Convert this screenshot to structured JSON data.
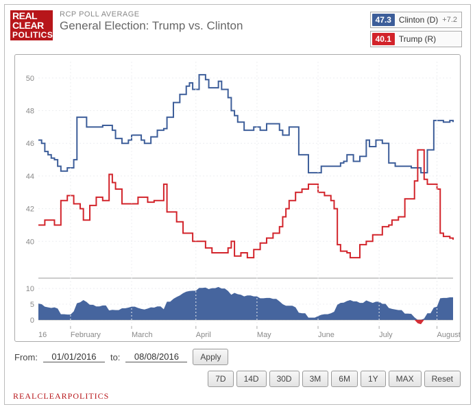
{
  "header": {
    "logo_lines": [
      "REAL",
      "CLEAR",
      "POLITICS"
    ],
    "supertitle": "RCP POLL AVERAGE",
    "title": "General Election: Trump vs. Clinton"
  },
  "legend": [
    {
      "value": "47.3",
      "name": "Clinton (D)",
      "lead": "+7.2",
      "color": "#3c5d99"
    },
    {
      "value": "40.1",
      "name": "Trump (R)",
      "lead": "",
      "color": "#d2232a"
    }
  ],
  "main_chart": {
    "type": "line",
    "background_color": "#ffffff",
    "grid_color": "#eceef0",
    "grid_dash": "2,3",
    "axis_color": "#dddddd",
    "label_color": "#888888",
    "label_fontsize": 11,
    "ylim": [
      38,
      51
    ],
    "yticks": [
      40,
      42,
      44,
      46,
      48,
      50
    ],
    "line_width": 2,
    "series": [
      {
        "name": "Clinton (D)",
        "color": "#3c5d99",
        "y": [
          46.2,
          46.0,
          45.5,
          45.3,
          45.1,
          45.0,
          44.6,
          44.3,
          44.3,
          44.5,
          44.5,
          45.0,
          47.6,
          47.6,
          47.6,
          47.0,
          47.0,
          47.0,
          47.0,
          47.0,
          47.1,
          47.1,
          47.1,
          46.8,
          46.3,
          46.3,
          46.0,
          46.0,
          46.2,
          46.5,
          46.5,
          46.5,
          46.2,
          46.0,
          46.0,
          46.4,
          46.4,
          46.8,
          46.8,
          46.9,
          47.6,
          47.6,
          48.5,
          48.5,
          49.0,
          49.0,
          49.5,
          49.7,
          49.3,
          49.3,
          50.2,
          50.2,
          49.9,
          49.4,
          49.4,
          49.4,
          49.8,
          49.3,
          49.3,
          48.8,
          48.0,
          47.7,
          47.3,
          47.3,
          46.8,
          46.8,
          46.8,
          47.0,
          47.0,
          46.8,
          46.8,
          47.2,
          47.2,
          47.2,
          47.2,
          46.8,
          46.5,
          46.5,
          47.0,
          47.0,
          47.0,
          45.3,
          45.3,
          45.3,
          44.2,
          44.2,
          44.2,
          44.2,
          44.6,
          44.6,
          44.6,
          44.6,
          44.6,
          44.6,
          44.8,
          44.9,
          45.3,
          45.3,
          44.9,
          44.9,
          45.2,
          45.2,
          46.2,
          45.8,
          45.8,
          46.2,
          46.2,
          46.0,
          46.0,
          44.8,
          44.8,
          44.6,
          44.6,
          44.6,
          44.6,
          44.6,
          44.5,
          44.5,
          44.5,
          44.2,
          44.2,
          45.6,
          45.6,
          47.4,
          47.4,
          47.4,
          47.3,
          47.3,
          47.4,
          47.3
        ]
      },
      {
        "name": "Trump (R)",
        "color": "#d2232a",
        "y": [
          41.0,
          41.0,
          41.3,
          41.3,
          41.3,
          41.0,
          41.0,
          42.5,
          42.5,
          42.8,
          42.8,
          42.3,
          42.3,
          42.0,
          41.3,
          41.3,
          42.2,
          42.2,
          42.7,
          42.7,
          42.5,
          42.5,
          44.1,
          43.6,
          43.2,
          43.2,
          42.3,
          42.3,
          42.3,
          42.3,
          42.3,
          42.7,
          42.7,
          42.7,
          42.4,
          42.4,
          42.5,
          42.5,
          42.5,
          43.5,
          41.8,
          41.8,
          41.8,
          41.2,
          41.2,
          40.5,
          40.5,
          40.5,
          40.0,
          40.0,
          40.0,
          40.0,
          39.6,
          39.6,
          39.3,
          39.3,
          39.3,
          39.3,
          39.3,
          39.6,
          40.0,
          39.1,
          39.1,
          39.3,
          39.3,
          39.0,
          39.0,
          39.5,
          39.5,
          39.9,
          39.9,
          40.2,
          40.2,
          40.5,
          40.5,
          40.9,
          41.5,
          42.0,
          42.5,
          42.5,
          43.0,
          43.0,
          43.2,
          43.2,
          43.5,
          43.5,
          43.5,
          43.0,
          43.0,
          42.8,
          42.8,
          42.5,
          42.0,
          39.8,
          39.4,
          39.4,
          39.3,
          39.0,
          39.0,
          39.0,
          39.8,
          39.8,
          40.0,
          40.0,
          40.4,
          40.4,
          40.4,
          40.9,
          40.9,
          41.0,
          41.3,
          41.3,
          41.5,
          41.5,
          42.6,
          42.6,
          42.6,
          43.7,
          45.6,
          45.6,
          43.8,
          43.5,
          43.5,
          43.5,
          43.2,
          40.5,
          40.3,
          40.3,
          40.2,
          40.1
        ]
      }
    ]
  },
  "spread_chart": {
    "type": "area",
    "fill_color": "#3c5d99",
    "neg_fill_color": "#d2232a",
    "axis_line_color": "#999999",
    "grid_color": "#eceef0",
    "label_color": "#888888",
    "label_fontsize": 11,
    "ylim": [
      -2,
      12
    ],
    "yticks": [
      0,
      5,
      10
    ],
    "y": [
      5.2,
      5.0,
      4.2,
      4.0,
      3.8,
      4.0,
      3.6,
      1.8,
      1.8,
      1.7,
      1.7,
      2.7,
      5.3,
      5.6,
      6.3,
      5.7,
      4.8,
      4.8,
      4.3,
      4.3,
      4.6,
      4.6,
      3.0,
      3.2,
      3.1,
      3.1,
      3.7,
      3.7,
      3.9,
      4.2,
      4.2,
      3.8,
      3.5,
      3.3,
      3.6,
      4.0,
      3.9,
      4.3,
      4.3,
      3.4,
      5.8,
      5.8,
      6.7,
      7.3,
      7.8,
      8.5,
      9.0,
      9.2,
      9.3,
      9.3,
      10.2,
      10.2,
      10.3,
      9.8,
      10.1,
      10.1,
      10.5,
      10.0,
      10.0,
      9.2,
      8.0,
      8.6,
      8.2,
      8.0,
      7.5,
      7.8,
      7.8,
      7.5,
      7.5,
      6.9,
      6.9,
      7.0,
      7.0,
      6.7,
      6.7,
      5.9,
      5.0,
      4.5,
      4.5,
      4.5,
      4.0,
      2.3,
      2.1,
      2.1,
      0.7,
      0.7,
      0.7,
      1.2,
      1.6,
      1.8,
      1.8,
      2.1,
      2.6,
      4.8,
      5.4,
      5.5,
      6.0,
      6.3,
      5.9,
      5.9,
      5.4,
      5.4,
      6.2,
      5.8,
      5.4,
      5.8,
      5.8,
      5.1,
      5.1,
      3.8,
      3.5,
      3.3,
      3.1,
      3.1,
      2.0,
      2.0,
      1.9,
      0.8,
      -1.1,
      -1.4,
      0.4,
      2.1,
      2.1,
      3.9,
      4.2,
      6.9,
      7.0,
      7.0,
      7.2,
      7.2
    ]
  },
  "xaxis": {
    "n_points": 130,
    "first_label": "16",
    "month_starts": [
      {
        "idx": 10,
        "label": "February"
      },
      {
        "idx": 29,
        "label": "March"
      },
      {
        "idx": 49,
        "label": "April"
      },
      {
        "idx": 68,
        "label": "May"
      },
      {
        "idx": 87,
        "label": "June"
      },
      {
        "idx": 106,
        "label": "July"
      },
      {
        "idx": 124,
        "label": "August"
      }
    ]
  },
  "controls": {
    "from_label": "From:",
    "from_value": "01/01/2016",
    "to_label": "to:",
    "to_value": "08/08/2016",
    "apply_label": "Apply",
    "range_buttons": [
      "7D",
      "14D",
      "30D",
      "3M",
      "6M",
      "1Y",
      "MAX",
      "Reset"
    ]
  },
  "footer": "REALCLEARPOLITICS"
}
